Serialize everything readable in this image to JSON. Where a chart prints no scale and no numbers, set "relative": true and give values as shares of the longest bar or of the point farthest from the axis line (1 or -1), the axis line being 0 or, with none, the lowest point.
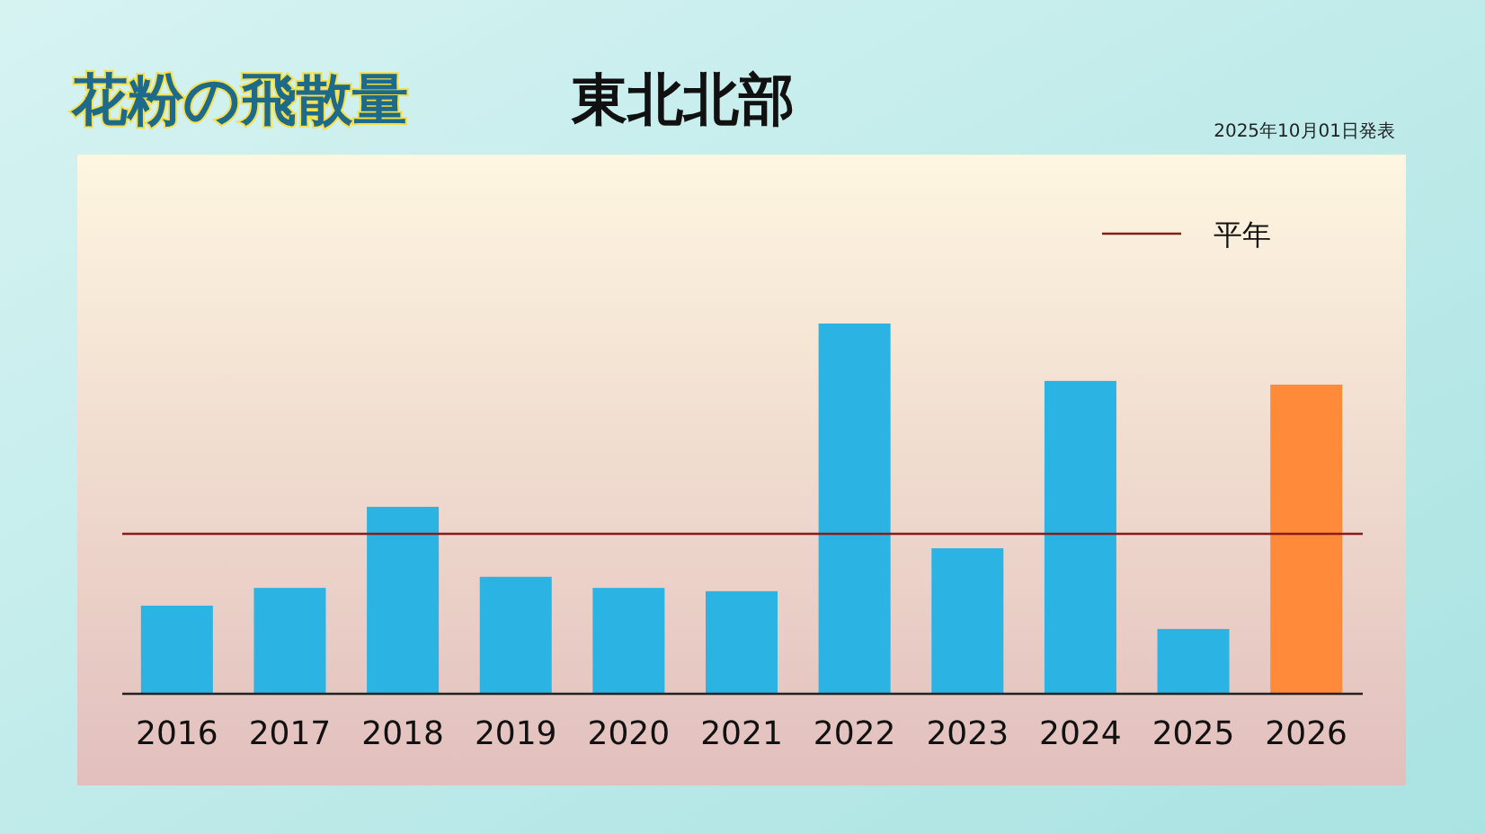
{
  "chart_data": {
    "type": "bar",
    "title": "花粉の飛散量",
    "subtitle": "東北北部",
    "categories": [
      "2016",
      "2017",
      "2018",
      "2019",
      "2020",
      "2021",
      "2022",
      "2023",
      "2024",
      "2025",
      "2026"
    ],
    "values": [
      0.238,
      0.286,
      0.505,
      0.316,
      0.286,
      0.277,
      1,
      0.393,
      0.845,
      0.175,
      0.835
    ],
    "colors": [
      "#2bb3e3",
      "#2bb3e3",
      "#2bb3e3",
      "#2bb3e3",
      "#2bb3e3",
      "#2bb3e3",
      "#2bb3e3",
      "#2bb3e3",
      "#2bb3e3",
      "#2bb3e3",
      "#ff8a3a"
    ],
    "relative": true,
    "ref_lines": [
      {
        "axis": "y",
        "value": 0.432,
        "label": "平年",
        "color": "#8b1a1a"
      }
    ],
    "annotations": [
      "2025年10月01日発表"
    ],
    "legend": "top right"
  }
}
